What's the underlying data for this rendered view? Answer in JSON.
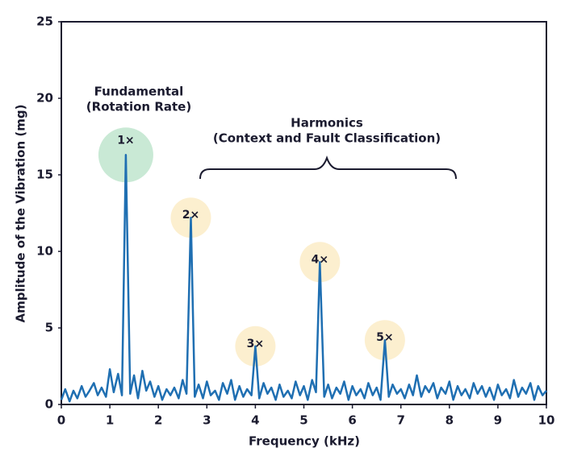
{
  "chart_data": {
    "type": "line",
    "xlabel": "Frequency (kHz)",
    "ylabel": "Amplitude of the Vibration (mg)",
    "x": [
      0,
      0.08,
      0.17,
      0.25,
      0.33,
      0.42,
      0.5,
      0.58,
      0.67,
      0.75,
      0.83,
      0.92,
      1,
      1.08,
      1.17,
      1.25,
      1.33,
      1.42,
      1.5,
      1.58,
      1.67,
      1.75,
      1.83,
      1.92,
      2,
      2.08,
      2.17,
      2.25,
      2.33,
      2.42,
      2.5,
      2.58,
      2.67,
      2.75,
      2.83,
      2.92,
      3,
      3.08,
      3.17,
      3.25,
      3.33,
      3.42,
      3.5,
      3.58,
      3.67,
      3.75,
      3.83,
      3.92,
      4,
      4.08,
      4.17,
      4.25,
      4.33,
      4.42,
      4.5,
      4.58,
      4.67,
      4.75,
      4.83,
      4.92,
      5,
      5.08,
      5.17,
      5.25,
      5.33,
      5.42,
      5.5,
      5.58,
      5.67,
      5.75,
      5.83,
      5.92,
      6,
      6.08,
      6.17,
      6.25,
      6.33,
      6.42,
      6.5,
      6.58,
      6.67,
      6.75,
      6.83,
      6.92,
      7,
      7.08,
      7.17,
      7.25,
      7.33,
      7.42,
      7.5,
      7.58,
      7.67,
      7.75,
      7.83,
      7.92,
      8,
      8.08,
      8.17,
      8.25,
      8.33,
      8.42,
      8.5,
      8.58,
      8.67,
      8.75,
      8.83,
      8.92,
      9,
      9.08,
      9.17,
      9.25,
      9.33,
      9.42,
      9.5,
      9.58,
      9.67,
      9.75,
      9.83,
      9.92,
      10
    ],
    "series": [
      {
        "color": "#1f6fb2",
        "values": [
          0.3,
          1.0,
          0.2,
          0.9,
          0.4,
          1.2,
          0.5,
          0.9,
          1.4,
          0.6,
          1.1,
          0.5,
          2.3,
          0.8,
          2.0,
          0.6,
          16.3,
          0.7,
          1.9,
          0.4,
          2.2,
          0.9,
          1.5,
          0.5,
          1.2,
          0.3,
          1.0,
          0.6,
          1.1,
          0.4,
          1.6,
          0.7,
          12.2,
          0.5,
          1.3,
          0.4,
          1.5,
          0.6,
          0.9,
          0.3,
          1.4,
          0.7,
          1.6,
          0.3,
          1.2,
          0.5,
          1.0,
          0.6,
          3.8,
          0.4,
          1.4,
          0.7,
          1.1,
          0.3,
          1.3,
          0.5,
          0.9,
          0.4,
          1.5,
          0.6,
          1.2,
          0.3,
          1.6,
          0.8,
          9.3,
          0.5,
          1.3,
          0.4,
          1.1,
          0.7,
          1.5,
          0.3,
          1.2,
          0.6,
          1.0,
          0.4,
          1.4,
          0.6,
          1.1,
          0.3,
          4.2,
          0.5,
          1.3,
          0.7,
          1.0,
          0.4,
          1.3,
          0.6,
          1.9,
          0.5,
          1.2,
          0.8,
          1.4,
          0.4,
          1.1,
          0.7,
          1.5,
          0.3,
          1.2,
          0.6,
          1.0,
          0.4,
          1.4,
          0.7,
          1.2,
          0.5,
          1.1,
          0.3,
          1.3,
          0.6,
          1.0,
          0.4,
          1.6,
          0.5,
          1.1,
          0.7,
          1.4,
          0.3,
          1.2,
          0.6,
          0.9
        ]
      }
    ],
    "xlim": [
      0,
      10
    ],
    "ylim": [
      0,
      25
    ],
    "xticks": [
      0,
      1,
      2,
      3,
      4,
      5,
      6,
      7,
      8,
      9,
      10
    ],
    "yticks": [
      0,
      5,
      10,
      15,
      20,
      25
    ],
    "annotations": {
      "fundamental": [
        "Fundamental",
        "(Rotation Rate)"
      ],
      "harmonics": [
        "Harmonics",
        "(Context and Fault Classification)"
      ]
    },
    "peak_labels": [
      {
        "text": "1×",
        "color": "#c9e9d5"
      },
      {
        "text": "2×",
        "color": "#fcefcf"
      },
      {
        "text": "3×",
        "color": "#fcefcf"
      },
      {
        "text": "4×",
        "color": "#fcefcf"
      },
      {
        "text": "5×",
        "color": "#fcefcf"
      }
    ]
  }
}
